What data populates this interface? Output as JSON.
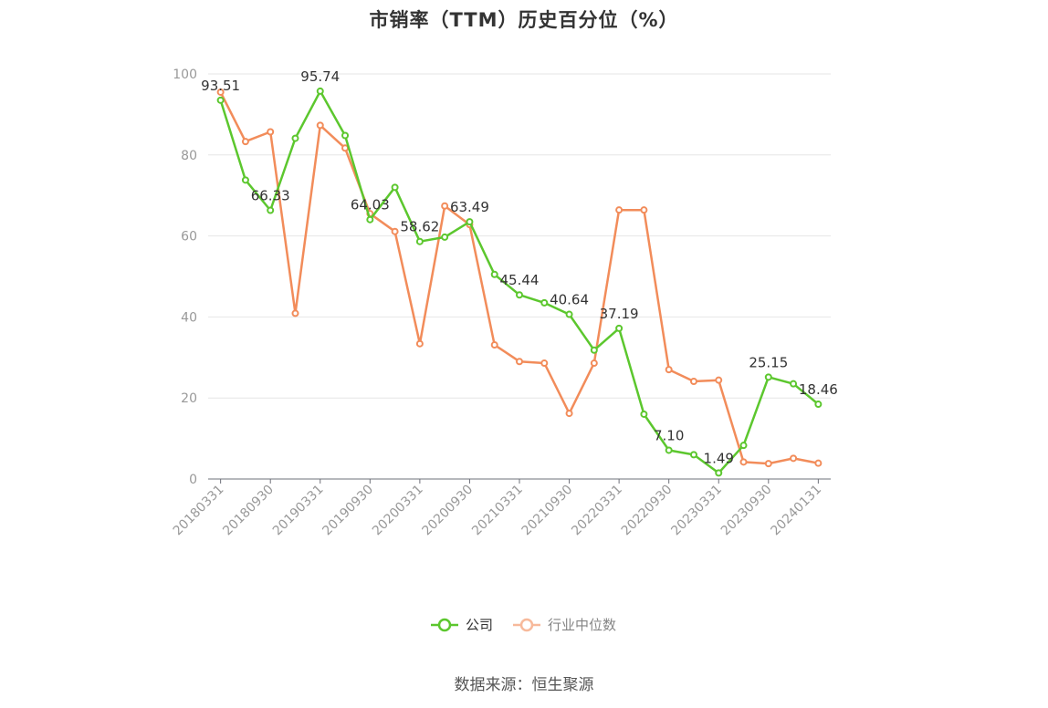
{
  "chart_data": {
    "type": "line",
    "title": "市销率（TTM）历史百分位（%）",
    "xlabel": "",
    "ylabel": "",
    "ylim": [
      0,
      100
    ],
    "yticks": [
      0,
      20,
      40,
      60,
      80,
      100
    ],
    "grid": true,
    "legend_position": "bottom-center",
    "x": [
      "20180331",
      "20180630",
      "20180930",
      "20181231",
      "20190331",
      "20190630",
      "20190930",
      "20191231",
      "20200331",
      "20200630",
      "20200930",
      "20201231",
      "20210331",
      "20210630",
      "20210930",
      "20211231",
      "20220331",
      "20220630",
      "20220930",
      "20221231",
      "20230331",
      "20230630",
      "20230930",
      "20231231",
      "20240131"
    ],
    "xtick_labels": [
      "20180331",
      "20180930",
      "20190331",
      "20190930",
      "20200331",
      "20200930",
      "20210331",
      "20210930",
      "20220331",
      "20220930",
      "20230331",
      "20230930",
      "20240131"
    ],
    "series": [
      {
        "name": "公司",
        "color": "#5cc72e",
        "values": [
          93.51,
          73.8,
          66.33,
          84.1,
          95.74,
          84.8,
          64.03,
          72.0,
          58.62,
          59.7,
          63.49,
          50.5,
          45.44,
          43.5,
          40.64,
          31.8,
          37.19,
          16.0,
          7.1,
          6.0,
          1.49,
          8.3,
          25.15,
          23.5,
          18.46
        ],
        "labeled_points": [
          {
            "x": "20180331",
            "text": "93.51"
          },
          {
            "x": "20180930",
            "text": "66.33"
          },
          {
            "x": "20190331",
            "text": "95.74"
          },
          {
            "x": "20190930",
            "text": "64.03"
          },
          {
            "x": "20200331",
            "text": "58.62"
          },
          {
            "x": "20200930",
            "text": "63.49"
          },
          {
            "x": "20210331",
            "text": "45.44"
          },
          {
            "x": "20210930",
            "text": "40.64"
          },
          {
            "x": "20220331",
            "text": "37.19"
          },
          {
            "x": "20220930",
            "text": "7.10"
          },
          {
            "x": "20230331",
            "text": "1.49"
          },
          {
            "x": "20230930",
            "text": "25.15"
          },
          {
            "x": "20240131",
            "text": "18.46"
          }
        ]
      },
      {
        "name": "行业中位数",
        "color": "#f28c5a",
        "values": [
          95.5,
          83.3,
          85.7,
          40.9,
          87.3,
          81.7,
          65.5,
          61.1,
          33.4,
          67.4,
          62.8,
          33.1,
          29.0,
          28.6,
          16.2,
          28.6,
          66.4,
          66.4,
          27.0,
          24.1,
          24.4,
          4.2,
          3.8,
          5.1,
          3.9
        ]
      }
    ]
  },
  "source_note": "数据来源：恒生聚源"
}
